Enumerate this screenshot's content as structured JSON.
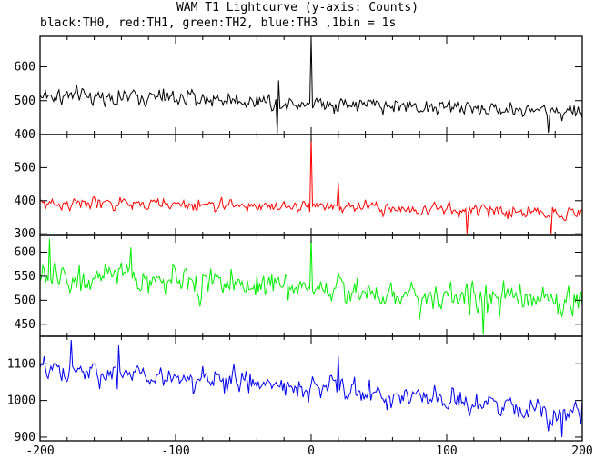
{
  "title": "WAM T1 Lightcurve (y-axis: Counts)",
  "subtitle": "black:TH0, red:TH1, green:TH2, blue:TH3 ,1bin = 1s",
  "chart_data": {
    "type": "line",
    "xlim": [
      -200,
      200
    ],
    "xticks": [
      -200,
      -100,
      0,
      100,
      200
    ],
    "x_step": 1,
    "grid": false,
    "panels": [
      {
        "name": "TH0",
        "color": "#000000",
        "ylim": [
          400,
          690
        ],
        "yticks": [
          400,
          500,
          600
        ],
        "trend": [
          [
            -200,
            515
          ],
          [
            -100,
            508
          ],
          [
            0,
            495
          ],
          [
            100,
            480
          ],
          [
            200,
            468
          ]
        ],
        "noise": 22,
        "features": [
          {
            "x": 0,
            "y": 690
          },
          {
            "x": -25,
            "y": 400
          },
          {
            "x": -24,
            "y": 560
          },
          {
            "x": 175,
            "y": 405
          }
        ]
      },
      {
        "name": "TH1",
        "color": "#ff0000",
        "ylim": [
          295,
          600
        ],
        "yticks": [
          300,
          400,
          500
        ],
        "trend": [
          [
            -200,
            392
          ],
          [
            -100,
            388
          ],
          [
            0,
            382
          ],
          [
            100,
            372
          ],
          [
            200,
            362
          ]
        ],
        "noise": 17,
        "features": [
          {
            "x": 0,
            "y": 595
          },
          {
            "x": 20,
            "y": 455
          },
          {
            "x": 115,
            "y": 300
          },
          {
            "x": 177,
            "y": 298
          }
        ]
      },
      {
        "name": "TH2",
        "color": "#00ee00",
        "ylim": [
          425,
          635
        ],
        "yticks": [
          450,
          500,
          550,
          600
        ],
        "trend": [
          [
            -200,
            548
          ],
          [
            -100,
            540
          ],
          [
            0,
            528
          ],
          [
            100,
            507
          ],
          [
            200,
            496
          ]
        ],
        "noise": 27,
        "features": [
          {
            "x": 0,
            "y": 630
          },
          {
            "x": -193,
            "y": 628
          },
          {
            "x": -133,
            "y": 610
          },
          {
            "x": 127,
            "y": 428
          }
        ]
      },
      {
        "name": "TH3",
        "color": "#0000ee",
        "ylim": [
          890,
          1175
        ],
        "yticks": [
          900,
          1000,
          1100
        ],
        "trend": [
          [
            -200,
            1080
          ],
          [
            -100,
            1062
          ],
          [
            0,
            1038
          ],
          [
            100,
            995
          ],
          [
            200,
            965
          ]
        ],
        "noise": 30,
        "features": [
          {
            "x": -177,
            "y": 1165
          },
          {
            "x": -142,
            "y": 1150
          },
          {
            "x": 20,
            "y": 1120
          },
          {
            "x": 185,
            "y": 900
          }
        ]
      }
    ]
  }
}
